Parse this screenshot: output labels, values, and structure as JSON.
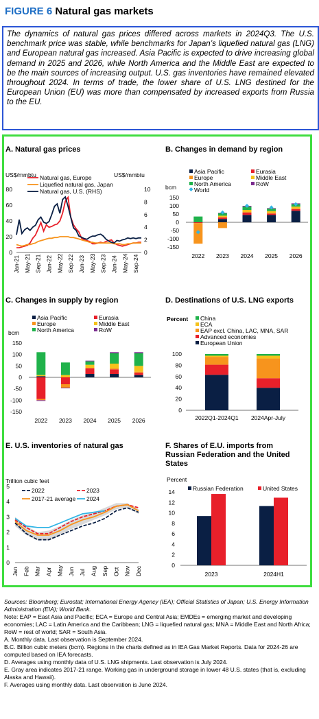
{
  "figure": {
    "number": "FIGURE 6",
    "title": "Natural gas markets"
  },
  "intro": "The dynamics of natural gas prices differed across markets in 2024Q3. The U.S. benchmark price was stable, while benchmarks for Japan’s liquefied natural gas (LNG) and European natural gas increased. Asia Pacific is expected to drive increasing global demand in 2025 and 2026, while North America and the Middle East are expected to be the main sources of increasing output. U.S. gas inventories have remained elevated throughout 2024. In terms of trade, the lower share of U.S. LNG destined for the European Union (EU) was more than compensated by increased exports from Russia to the EU.",
  "colors": {
    "navy": "#0a1f44",
    "red": "#e8202a",
    "orange": "#f7941d",
    "green": "#20b24b",
    "yellow": "#f5c21b",
    "purple": "#7b2c8f",
    "cyan": "#33b5e5",
    "blue": "#2b55d6",
    "frame": "#3fdd3f"
  },
  "chart_data": [
    {
      "id": "A",
      "type": "line",
      "title": "A. Natural gas prices",
      "ylabel_left": "US$/mmbtu",
      "ylabel_right": "US$/mmbtu",
      "ylim_left": [
        0,
        80
      ],
      "ylim_right": [
        0,
        10
      ],
      "yticks_left": [
        "0",
        "20",
        "40",
        "60",
        "80"
      ],
      "yticks_right": [
        "0",
        "2",
        "4",
        "6",
        "8",
        "10"
      ],
      "xticks": [
        "Jan-21",
        "May-21",
        "Sep-21",
        "Jan-22",
        "May-22",
        "Sep-22",
        "Jan-23",
        "May-23",
        "Sep-23",
        "Jan-24",
        "May-24",
        "Sep-24"
      ],
      "series": [
        {
          "name": "Natural gas, Europe",
          "axis": "left",
          "color": "#e8202a",
          "values": [
            6,
            6,
            7,
            8,
            9,
            12,
            18,
            22,
            30,
            38,
            27,
            35,
            32,
            33,
            35,
            36,
            40,
            50,
            65,
            70,
            45,
            35,
            30,
            26,
            18,
            16,
            15,
            14,
            11,
            11,
            12,
            13,
            12,
            14,
            15,
            16,
            12,
            10,
            9,
            8,
            9,
            10,
            11,
            12,
            12,
            13,
            13
          ]
        },
        {
          "name": "Liquefied natural gas, Japan",
          "axis": "left",
          "color": "#f7941d",
          "values": [
            10,
            9,
            8,
            9,
            10,
            10,
            11,
            12,
            14,
            15,
            16,
            17,
            18,
            18,
            19,
            19,
            20,
            20,
            20,
            20,
            19,
            19,
            18,
            17,
            16,
            15,
            14,
            13,
            13,
            12,
            12,
            12,
            12,
            12,
            12,
            12,
            11,
            11,
            11,
            10,
            10,
            11,
            11,
            12,
            12,
            12,
            12
          ]
        },
        {
          "name": "Natural gas, U.S. (RHS)",
          "axis": "right",
          "color": "#0a1f44",
          "values": [
            2.8,
            5.2,
            3.0,
            3.6,
            3.9,
            3.5,
            4.0,
            4.3,
            5.2,
            5.6,
            4.8,
            4.6,
            4.9,
            6.0,
            7.3,
            7.7,
            6.2,
            8.4,
            8.8,
            7.3,
            5.6,
            3.9,
            3.5,
            2.6,
            2.4,
            2.2,
            2.1,
            2.4,
            2.6,
            2.6,
            2.8,
            2.9,
            2.6,
            2.1,
            1.8,
            1.6,
            1.5,
            1.9,
            1.8,
            2.0,
            2.1,
            2.3,
            2.2,
            2.3,
            2.2,
            2.3,
            2.3
          ]
        }
      ]
    },
    {
      "id": "B",
      "type": "bar",
      "stacked": true,
      "title": "B. Changes in demand by region",
      "ylabel": "bcm",
      "ylim": [
        -150,
        150
      ],
      "yticks": [
        "-150",
        "-100",
        "-50",
        "0",
        "50",
        "100",
        "150"
      ],
      "categories": [
        "2022",
        "2023",
        "2024",
        "2025",
        "2026"
      ],
      "series": [
        {
          "name": "Asia Pacific",
          "color": "#0a1f44",
          "values": [
            0,
            20,
            45,
            45,
            70
          ]
        },
        {
          "name": "Eurasia",
          "color": "#e8202a",
          "values": [
            -5,
            10,
            15,
            8,
            10
          ]
        },
        {
          "name": "Europe",
          "color": "#f7941d",
          "values": [
            -125,
            -35,
            0,
            5,
            5
          ]
        },
        {
          "name": "Middle East",
          "color": "#f5c21b",
          "values": [
            0,
            10,
            15,
            10,
            10
          ]
        },
        {
          "name": "North America",
          "color": "#20b24b",
          "values": [
            35,
            15,
            20,
            15,
            15
          ]
        },
        {
          "name": "RoW",
          "color": "#7b2c8f",
          "values": [
            0,
            3,
            5,
            3,
            5
          ]
        }
      ],
      "world": {
        "name": "World",
        "color": "#33b5e5",
        "values": [
          -60,
          60,
          100,
          90,
          110
        ]
      }
    },
    {
      "id": "C",
      "type": "bar",
      "stacked": true,
      "title": "C. Changes in supply by region",
      "ylabel": "bcm",
      "ylim": [
        -150,
        150
      ],
      "yticks": [
        "-150",
        "-100",
        "-50",
        "0",
        "50",
        "100",
        "150"
      ],
      "categories": [
        "2022",
        "2023",
        "2024",
        "2025",
        "2026"
      ],
      "series": [
        {
          "name": "Asia Pacific",
          "color": "#0a1f44",
          "values": [
            5,
            0,
            15,
            15,
            10
          ]
        },
        {
          "name": "Eurasia",
          "color": "#e8202a",
          "values": [
            -95,
            -30,
            25,
            20,
            10
          ]
        },
        {
          "name": "Europe",
          "color": "#f7941d",
          "values": [
            -5,
            -15,
            0,
            5,
            5
          ]
        },
        {
          "name": "Middle East",
          "color": "#f5c21b",
          "values": [
            5,
            10,
            15,
            20,
            25
          ]
        },
        {
          "name": "North America",
          "color": "#20b24b",
          "values": [
            100,
            55,
            15,
            45,
            55
          ]
        },
        {
          "name": "RoW",
          "color": "#7b2c8f",
          "values": [
            -3,
            -3,
            3,
            5,
            5
          ]
        }
      ]
    },
    {
      "id": "D",
      "type": "bar",
      "stacked": true,
      "title": "D. Destinations of U.S. LNG exports",
      "ylabel": "Percent",
      "ylim": [
        0,
        100
      ],
      "yticks": [
        "0",
        "20",
        "40",
        "60",
        "80",
        "100"
      ],
      "categories": [
        "2022Q1-2024Q1",
        "2024Apr-July"
      ],
      "series": [
        {
          "name": "China",
          "color": "#20b24b",
          "values": [
            3,
            3
          ]
        },
        {
          "name": "ECA",
          "color": "#f5c21b",
          "values": [
            2,
            5
          ]
        },
        {
          "name": "EAP excl. China, LAC, MNA, SAR",
          "color": "#f7941d",
          "values": [
            14,
            35
          ]
        },
        {
          "name": "Advanced economies",
          "color": "#e8202a",
          "values": [
            18,
            17
          ]
        },
        {
          "name": "European Union",
          "color": "#0a1f44",
          "values": [
            63,
            40
          ]
        }
      ]
    },
    {
      "id": "E",
      "type": "line",
      "title": "E. U.S. inventories of natural gas",
      "ylabel": "Trillion cubic feet",
      "ylim": [
        0,
        5
      ],
      "yticks": [
        "0",
        "1",
        "2",
        "3",
        "4",
        "5"
      ],
      "xticks": [
        "Jan",
        "Feb",
        "Mar",
        "Apr",
        "May",
        "Jun",
        "Jul",
        "Aug",
        "Sep",
        "Oct",
        "Nov",
        "Dec"
      ],
      "range": {
        "low": [
          2.4,
          1.8,
          1.5,
          1.5,
          1.8,
          2.2,
          2.5,
          2.8,
          3.1,
          3.5,
          3.6,
          3.2
        ],
        "high": [
          3.0,
          2.4,
          2.0,
          2.1,
          2.4,
          2.8,
          3.1,
          3.3,
          3.6,
          3.9,
          3.9,
          3.5
        ]
      },
      "series": [
        {
          "name": "2022",
          "color": "#0a1f44",
          "dash": "5,2",
          "values": [
            2.6,
            1.9,
            1.5,
            1.5,
            1.8,
            2.1,
            2.4,
            2.6,
            2.9,
            3.4,
            3.6,
            3.3
          ]
        },
        {
          "name": "2023",
          "color": "#e8202a",
          "dash": "5,2",
          "values": [
            2.8,
            2.3,
            1.9,
            1.9,
            2.3,
            2.7,
            3.0,
            3.2,
            3.4,
            3.7,
            3.8,
            3.6
          ]
        },
        {
          "name": "2017-21 average",
          "color": "#f7941d",
          "values": [
            2.7,
            2.1,
            1.8,
            1.8,
            2.1,
            2.5,
            2.8,
            3.0,
            3.3,
            3.7,
            3.8,
            3.4
          ]
        },
        {
          "name": "2024",
          "color": "#33b5e5",
          "values": [
            2.9,
            2.4,
            2.3,
            2.3,
            2.6,
            2.9,
            3.2,
            3.3,
            3.4
          ]
        }
      ]
    },
    {
      "id": "F",
      "type": "bar",
      "title": "F. Shares of E.U. imports from Russian Federation and the United States",
      "ylabel": "Percent",
      "ylim": [
        0,
        14
      ],
      "yticks": [
        "0",
        "2",
        "4",
        "6",
        "8",
        "10",
        "12",
        "14"
      ],
      "categories": [
        "2023",
        "2024H1"
      ],
      "series": [
        {
          "name": "Russian Federation",
          "color": "#0a1f44",
          "values": [
            9.4,
            11.3
          ]
        },
        {
          "name": "United States",
          "color": "#e8202a",
          "values": [
            13.6,
            12.9
          ]
        }
      ]
    }
  ],
  "notes": [
    "Sources: Bloomberg; Eurostat; International Energy Agency (IEA); Official Statistics of Japan;  U.S. Energy Information Administration (EIA); World Bank.",
    "Note: EAP = East Asia and Pacific; ECA = Europe and Central Asia; EMDEs = emerging market and developing economies; LAC = Latin America and the Caribbean; LNG = liquefied natural gas; MNA = Middle East and North Africa; RoW = rest of world; SAR = South Asia.",
    "A. Monthly data. Last observation is September 2024.",
    "B.C. Billion cubic meters (bcm). Regions in the charts defined as in IEA Gas Market Reports. Data for 2024-26 are computed based on IEA forecasts.",
    "D. Averages using monthly data of U.S. LNG shipments. Last observation is July 2024.",
    "E. Gray area indicates 2017-21 range. Working gas in underground storage in lower 48 U.S. states (that is, excluding Alaska and Hawaii).",
    "F. Averages using monthly data. Last observation is June 2024."
  ]
}
